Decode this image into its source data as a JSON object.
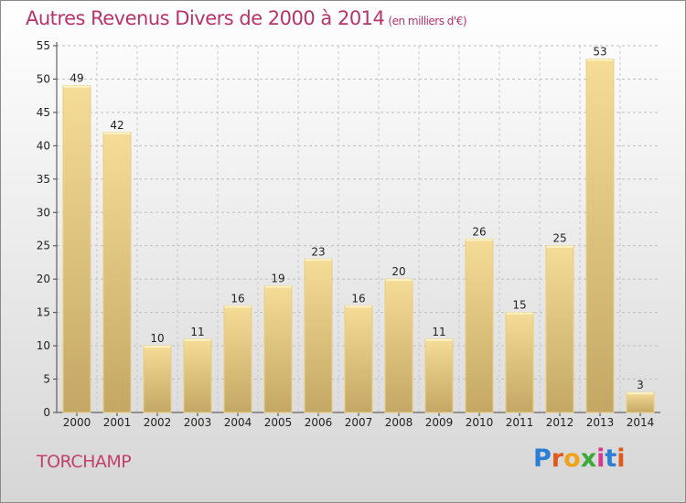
{
  "title": "Autres Revenus Divers de 2000 à 2014",
  "subtitle": "(en milliers d'€)",
  "town": "TORCHAMP",
  "brand": {
    "letters": [
      "P",
      "r",
      "o",
      "x",
      "i",
      "t",
      "i"
    ],
    "colors": [
      "#2a7fd4",
      "#e05a1c",
      "#f2a21a",
      "#3aa83a",
      "#d63a8e",
      "#2a7fd4",
      "#e05a1c"
    ]
  },
  "chart_data": {
    "type": "bar",
    "title": "Autres Revenus Divers de 2000 à 2014",
    "subtitle": "(en milliers d'€)",
    "categories": [
      "2000",
      "2001",
      "2002",
      "2003",
      "2004",
      "2005",
      "2006",
      "2007",
      "2008",
      "2009",
      "2010",
      "2011",
      "2012",
      "2013",
      "2014"
    ],
    "values": [
      49,
      42,
      10,
      11,
      16,
      19,
      23,
      16,
      20,
      11,
      26,
      15,
      25,
      53,
      3
    ],
    "ylim": [
      0,
      55
    ],
    "yticks": [
      0,
      5,
      10,
      15,
      20,
      25,
      30,
      35,
      40,
      45,
      50,
      55
    ],
    "grid": true,
    "bar_color": "#f0d48c"
  }
}
